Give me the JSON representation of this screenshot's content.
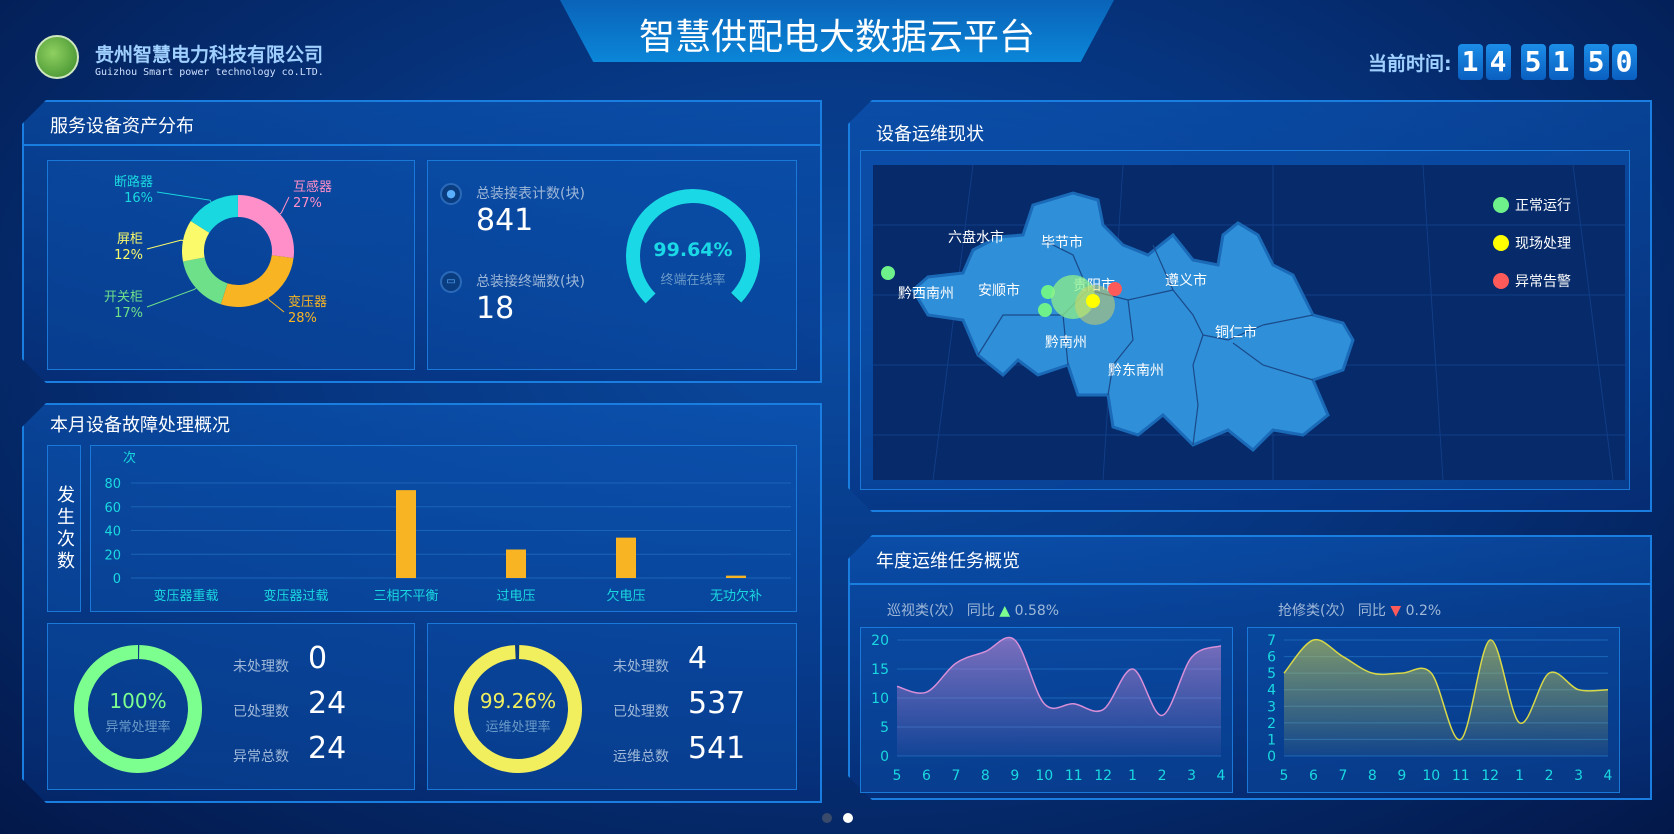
{
  "header": {
    "title": "智慧供配电大数据云平台",
    "company_cn": "贵州智慧电力科技有限公司",
    "company_en": "Guizhou Smart power technology co.LTD.",
    "time_label": "当前时间:",
    "time_digits": [
      "1",
      "4",
      "5",
      "1",
      "5",
      "0"
    ]
  },
  "asset": {
    "title": "服务设备资产分布",
    "donut": [
      {
        "name": "互感器",
        "pct": 27,
        "label": "27%",
        "color": "#ff8fc8"
      },
      {
        "name": "变压器",
        "pct": 28,
        "label": "28%",
        "color": "#f8b422"
      },
      {
        "name": "开关柜",
        "pct": 17,
        "label": "17%",
        "color": "#6ee08a"
      },
      {
        "name": "屏柜",
        "pct": 12,
        "label": "12%",
        "color": "#fafa6a"
      },
      {
        "name": "断路器",
        "pct": 16,
        "label": "16%",
        "color": "#1ad8e0"
      }
    ],
    "meter_label": "总装接表计数(块)",
    "meter_value": "841",
    "terminal_label": "总装接终端数(块)",
    "terminal_value": "18",
    "gauge_value": "99.64%",
    "gauge_pct": 99.64,
    "gauge_label": "终端在线率",
    "gauge_color": "#1ad8e6"
  },
  "fault": {
    "title": "本月设备故障处理概况",
    "side_label": "发生次数",
    "chart_data": {
      "type": "bar",
      "ylabel": "次",
      "ylim": [
        0,
        80
      ],
      "yticks": [
        "0",
        "20",
        "40",
        "60",
        "80"
      ],
      "categories": [
        "变压器重载",
        "变压器过载",
        "三相不平衡",
        "过电压",
        "欠电压",
        "无功欠补"
      ],
      "values": [
        0,
        0,
        74,
        24,
        34,
        2
      ],
      "color": "#f8b422"
    },
    "abnormal": {
      "rate": "100%",
      "rate_pct": 100,
      "rate_label": "异常处理率",
      "color": "#7dff8f",
      "rows": [
        {
          "label": "未处理数",
          "value": "0"
        },
        {
          "label": "已处理数",
          "value": "24"
        },
        {
          "label": "异常总数",
          "value": "24"
        }
      ]
    },
    "ops": {
      "rate": "99.26%",
      "rate_pct": 99.26,
      "rate_label": "运维处理率",
      "color": "#f2ef5e",
      "rows": [
        {
          "label": "未处理数",
          "value": "4"
        },
        {
          "label": "已处理数",
          "value": "537"
        },
        {
          "label": "运维总数",
          "value": "541"
        }
      ]
    }
  },
  "map": {
    "title": "设备运维现状",
    "regions": [
      "六盘水市",
      "毕节市",
      "贵阳市",
      "遵义市",
      "黔西南州",
      "安顺市",
      "铜仁市",
      "黔南州",
      "黔东南州"
    ],
    "legend": [
      {
        "label": "正常运行",
        "color": "#6ef08a"
      },
      {
        "label": "现场处理",
        "color": "#ffff00"
      },
      {
        "label": "异常告警",
        "color": "#ff5a5a"
      }
    ]
  },
  "annual": {
    "title": "年度运维任务概览",
    "chart_data": [
      {
        "type": "area",
        "name": "巡视类(次）",
        "compare_label": "同比",
        "trend": "up",
        "change": "0.58%",
        "x": [
          "5",
          "6",
          "7",
          "8",
          "9",
          "10",
          "11",
          "12",
          "1",
          "2",
          "3",
          "4"
        ],
        "values": [
          12,
          11,
          16,
          18,
          20,
          9,
          9,
          8,
          15,
          7,
          17,
          19
        ],
        "ylim": [
          0,
          20
        ],
        "yticks": [
          "0",
          "5",
          "10",
          "15",
          "20"
        ],
        "color": "#d88fd8"
      },
      {
        "type": "area",
        "name": "抢修类(次）",
        "compare_label": "同比",
        "trend": "down",
        "change": "0.2%",
        "x": [
          "5",
          "6",
          "7",
          "8",
          "9",
          "10",
          "11",
          "12",
          "1",
          "2",
          "3",
          "4"
        ],
        "values": [
          5,
          7,
          6,
          5,
          5,
          5,
          1,
          7,
          2,
          5,
          4,
          4
        ],
        "ylim": [
          0,
          7
        ],
        "yticks": [
          "0",
          "1",
          "2",
          "3",
          "4",
          "5",
          "6",
          "7"
        ],
        "color": "#d8d848"
      }
    ]
  },
  "pager": {
    "pages": 2,
    "active": 2
  }
}
